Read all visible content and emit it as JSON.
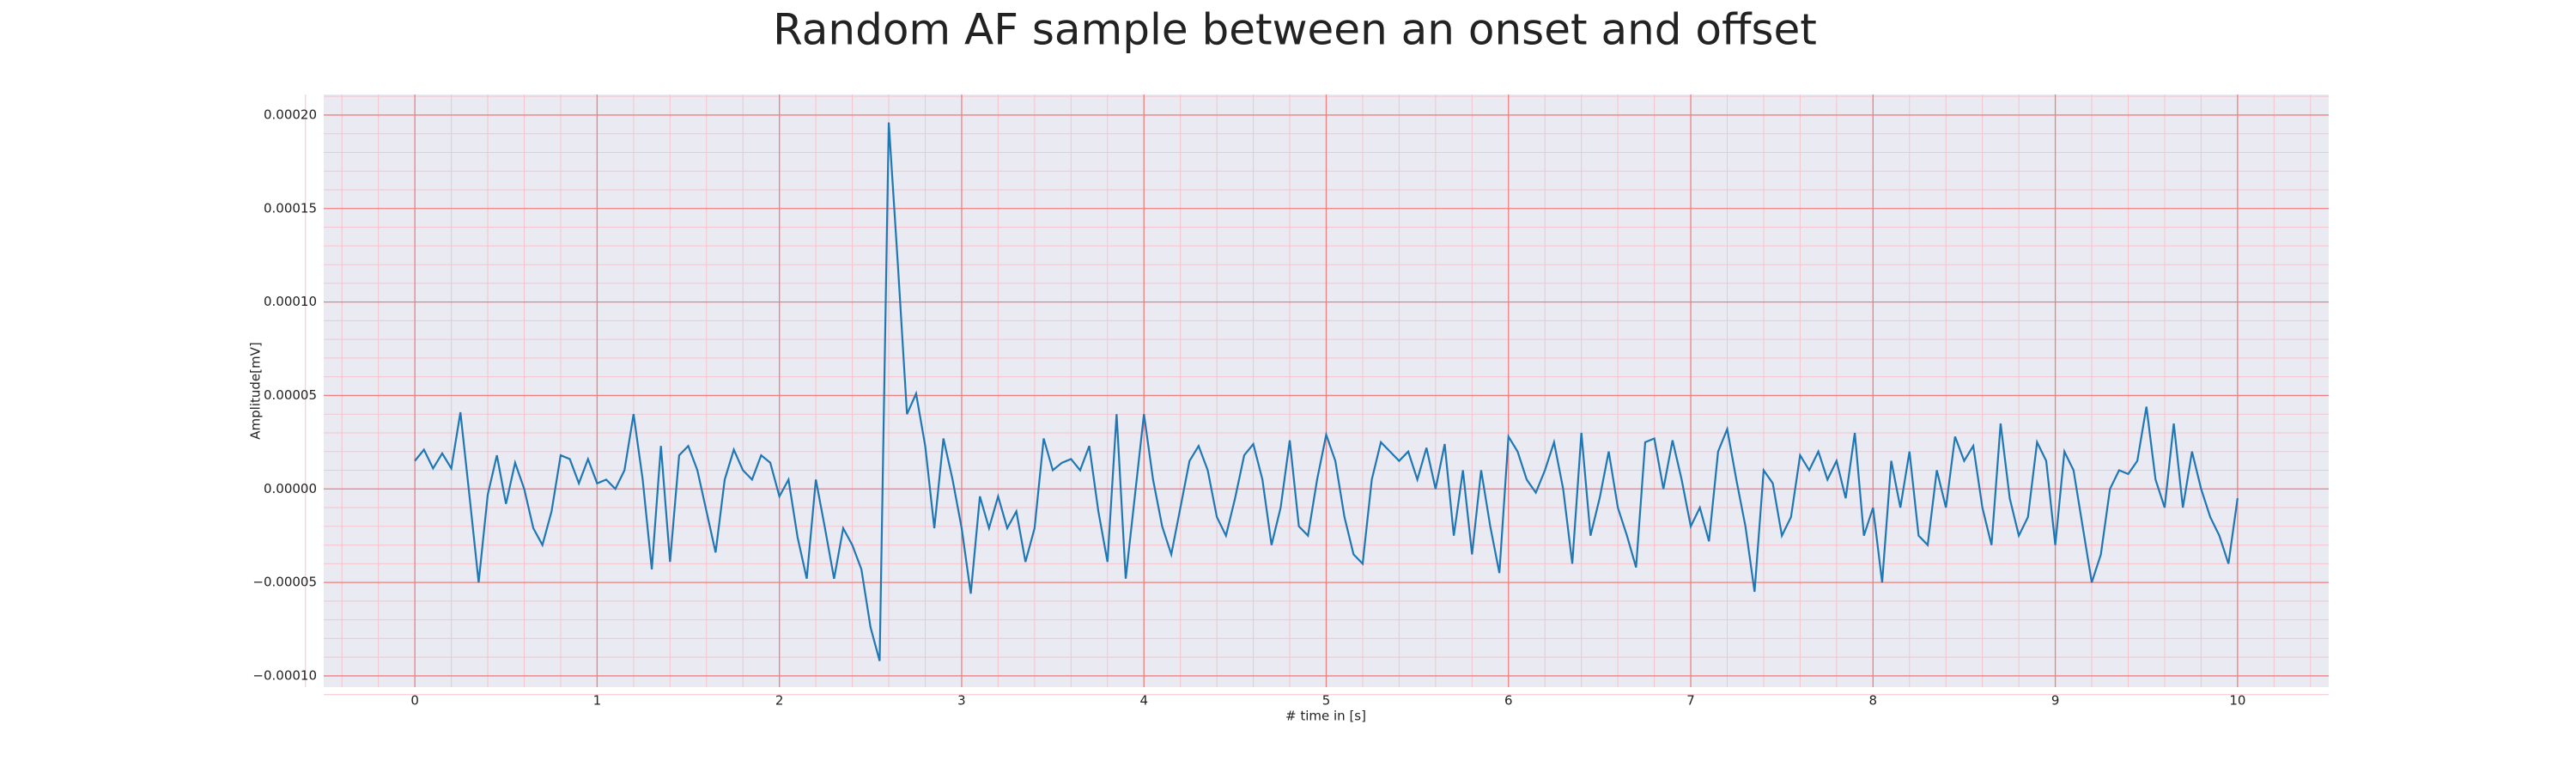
{
  "chart_data": {
    "type": "line",
    "title": "Random AF sample between an onset and offset",
    "xlabel": "# time in [s]",
    "ylabel": "Amplitude[mV]",
    "xlim": [
      -0.5,
      10.5
    ],
    "ylim": [
      -0.000106,
      0.000211
    ],
    "xticks": [
      0,
      1,
      2,
      3,
      4,
      5,
      6,
      7,
      8,
      9,
      10
    ],
    "yticks": [
      {
        "value": -0.0001,
        "label": "−0.00010"
      },
      {
        "value": -5e-05,
        "label": "−0.00005"
      },
      {
        "value": 0,
        "label": "0.00000"
      },
      {
        "value": 5e-05,
        "label": "0.00005"
      },
      {
        "value": 0.0001,
        "label": "0.00010"
      },
      {
        "value": 0.00015,
        "label": "0.00015"
      },
      {
        "value": 0.0002,
        "label": "0.00020"
      }
    ],
    "grid": true,
    "minor_grid": true,
    "background": "#eaeaf2",
    "grid_color": "#f08080",
    "minor_grid_color": "#f5c4cc",
    "series": [
      {
        "color": "#1f77b4",
        "x": [
          0,
          0.05,
          0.1,
          0.15,
          0.2,
          0.25,
          0.3,
          0.35,
          0.4,
          0.45,
          0.5,
          0.55,
          0.6,
          0.65,
          0.7,
          0.75,
          0.8,
          0.85,
          0.9,
          0.95,
          1,
          1.05,
          1.1,
          1.15,
          1.2,
          1.25,
          1.3,
          1.35,
          1.4,
          1.45,
          1.5,
          1.55,
          1.6,
          1.65,
          1.7,
          1.75,
          1.8,
          1.85,
          1.9,
          1.95,
          2,
          2.05,
          2.1,
          2.15,
          2.2,
          2.25,
          2.3,
          2.35,
          2.4,
          2.45,
          2.5,
          2.55,
          2.6,
          2.65,
          2.7,
          2.75,
          2.8,
          2.85,
          2.9,
          2.95,
          3,
          3.05,
          3.1,
          3.15,
          3.2,
          3.25,
          3.3,
          3.35,
          3.4,
          3.45,
          3.5,
          3.55,
          3.6,
          3.65,
          3.7,
          3.75,
          3.8,
          3.85,
          3.9,
          3.95,
          4,
          4.05,
          4.1,
          4.15,
          4.2,
          4.25,
          4.3,
          4.35,
          4.4,
          4.45,
          4.5,
          4.55,
          4.6,
          4.65,
          4.7,
          4.75,
          4.8,
          4.85,
          4.9,
          4.95,
          5,
          5.05,
          5.1,
          5.15,
          5.2,
          5.25,
          5.3,
          5.35,
          5.4,
          5.45,
          5.5,
          5.55,
          5.6,
          5.65,
          5.7,
          5.75,
          5.8,
          5.85,
          5.9,
          5.95,
          6,
          6.05,
          6.1,
          6.15,
          6.2,
          6.25,
          6.3,
          6.35,
          6.4,
          6.45,
          6.5,
          6.55,
          6.6,
          6.65,
          6.7,
          6.75,
          6.8,
          6.85,
          6.9,
          6.95,
          7,
          7.05,
          7.1,
          7.15,
          7.2,
          7.25,
          7.3,
          7.35,
          7.4,
          7.45,
          7.5,
          7.55,
          7.6,
          7.65,
          7.7,
          7.75,
          7.8,
          7.85,
          7.9,
          7.95,
          8,
          8.05,
          8.1,
          8.15,
          8.2,
          8.25,
          8.3,
          8.35,
          8.4,
          8.45,
          8.5,
          8.55,
          8.6,
          8.65,
          8.7,
          8.75,
          8.8,
          8.85,
          8.9,
          8.95,
          9,
          9.05,
          9.1,
          9.15,
          9.2,
          9.25,
          9.3,
          9.35,
          9.4,
          9.45,
          9.5,
          9.55,
          9.6,
          9.65,
          9.7,
          9.75,
          9.8,
          9.85,
          9.9,
          9.95,
          10
        ],
        "values": [
          1.5e-05,
          2.1e-05,
          1.1e-05,
          1.9e-05,
          1.1e-05,
          4.1e-05,
          -4e-06,
          -5e-05,
          -3e-06,
          1.8e-05,
          -8e-06,
          1.4e-05,
          0,
          -2.1e-05,
          -3e-05,
          -1.2e-05,
          1.8e-05,
          1.6e-05,
          3e-06,
          1.6e-05,
          3e-06,
          5e-06,
          0,
          1e-05,
          4e-05,
          5e-06,
          -4.3e-05,
          2.3e-05,
          -3.9e-05,
          1.8e-05,
          2.3e-05,
          1e-05,
          -1.2e-05,
          -3.4e-05,
          5e-06,
          2.1e-05,
          1e-05,
          5e-06,
          1.8e-05,
          1.4e-05,
          -4e-06,
          5e-06,
          -2.6e-05,
          -4.8e-05,
          5e-06,
          -2.1e-05,
          -4.8e-05,
          -2.1e-05,
          -3e-05,
          -4.3e-05,
          -7.4e-05,
          -9.2e-05,
          0.000196,
          0.00012,
          4e-05,
          5.1e-05,
          2.3e-05,
          -2.1e-05,
          2.7e-05,
          5e-06,
          -2.1e-05,
          -5.6e-05,
          -4e-06,
          -2.1e-05,
          -4e-06,
          -2.1e-05,
          -1.2e-05,
          -3.9e-05,
          -2.1e-05,
          2.7e-05,
          1e-05,
          1.4e-05,
          1.6e-05,
          1e-05,
          2.3e-05,
          -1.2e-05,
          -3.9e-05,
          4e-05,
          -4.8e-05,
          -4e-06,
          4e-05,
          5e-06,
          -2e-05,
          -3.5e-05,
          -1e-05,
          1.5e-05,
          2.3e-05,
          1e-05,
          -1.5e-05,
          -2.5e-05,
          -5e-06,
          1.8e-05,
          2.4e-05,
          5e-06,
          -3e-05,
          -1e-05,
          2.6e-05,
          -2e-05,
          -2.5e-05,
          5e-06,
          2.9e-05,
          1.5e-05,
          -1.5e-05,
          -3.5e-05,
          -4e-05,
          5e-06,
          2.5e-05,
          2e-05,
          1.5e-05,
          2e-05,
          5e-06,
          2.2e-05,
          0,
          2.4e-05,
          -2.5e-05,
          1e-05,
          -3.5e-05,
          1e-05,
          -2e-05,
          -4.5e-05,
          2.8e-05,
          2e-05,
          5e-06,
          -2e-06,
          1e-05,
          2.5e-05,
          0,
          -4e-05,
          3e-05,
          -2.5e-05,
          -5e-06,
          2e-05,
          -1e-05,
          -2.5e-05,
          -4.2e-05,
          2.5e-05,
          2.7e-05,
          0,
          2.6e-05,
          5e-06,
          -2e-05,
          -1e-05,
          -2.8e-05,
          2e-05,
          3.2e-05,
          5e-06,
          -2e-05,
          -5.5e-05,
          1e-05,
          3e-06,
          -2.5e-05,
          -1.5e-05,
          1.8e-05,
          1e-05,
          2e-05,
          5e-06,
          1.5e-05,
          -5e-06,
          3e-05,
          -2.5e-05,
          -1e-05,
          -5e-05,
          1.5e-05,
          -1e-05,
          2e-05,
          -2.5e-05,
          -3e-05,
          1e-05,
          -1e-05,
          2.8e-05,
          1.5e-05,
          2.3e-05,
          -1e-05,
          -3e-05,
          3.5e-05,
          -5e-06,
          -2.5e-05,
          -1.5e-05,
          2.5e-05,
          1.5e-05,
          -3e-05,
          2e-05,
          1e-05,
          -2e-05,
          -5e-05,
          -3.5e-05,
          0,
          1e-05,
          8e-06,
          1.5e-05,
          4.4e-05,
          5e-06,
          -1e-05,
          3.5e-05,
          -1e-05,
          2e-05,
          0,
          -1.5e-05,
          -2.5e-05,
          -4e-05,
          -5e-06
        ]
      }
    ]
  }
}
